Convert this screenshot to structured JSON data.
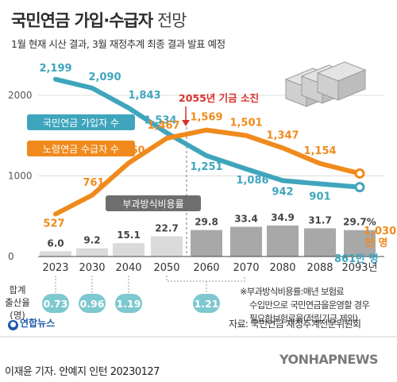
{
  "header": {
    "title_bold": "국민연금 가입·수급자",
    "title_light": " 전망",
    "subtitle": "1월 현재 시산 결과, 3월 재정추계 최종 결과 발표 예정"
  },
  "chart_data": {
    "type": "line",
    "categories": [
      "2023",
      "2030",
      "2040",
      "2050",
      "2060",
      "2070",
      "2080",
      "2088",
      "2093년"
    ],
    "ylim": [
      0,
      2300
    ],
    "y_ticks": [
      "2000",
      "1000",
      "0"
    ],
    "y_tick_values": [
      2000,
      1000,
      0
    ],
    "series": [
      {
        "name": "국민연금 가입자 수",
        "color": "#3fa5bd",
        "values": [
          2199,
          2090,
          1843,
          1534,
          1251,
          1086,
          942,
          901,
          861
        ],
        "labels": [
          "2,199",
          "2,090",
          "1,843",
          "1,534",
          "1,251",
          "1,086",
          "942",
          "901",
          "861만 명"
        ]
      },
      {
        "name": "노령연금 수급자 수",
        "color": "#f08a1c",
        "values": [
          527,
          761,
          1160,
          1467,
          1569,
          1501,
          1347,
          1154,
          1030
        ],
        "labels": [
          "527",
          "761",
          "1,160",
          "1,467",
          "1,569",
          "1,501",
          "1,347",
          "1,154",
          "1,030"
        ],
        "unit_label": "만 명"
      }
    ],
    "bars": {
      "name": "부과방식비용률",
      "values": [
        6.0,
        9.2,
        15.1,
        22.7,
        29.8,
        33.4,
        34.9,
        31.7,
        29.7
      ],
      "labels": [
        "6.0",
        "9.2",
        "15.1",
        "22.7",
        "29.8",
        "33.4",
        "34.9",
        "31.7",
        "29.7%"
      ]
    },
    "annotation": "2055년 기금 소진",
    "fertility": {
      "label": "합계\n출산율\n(명)",
      "values": [
        "0.73",
        "0.96",
        "1.19"
      ],
      "value_2060": "1.21"
    }
  },
  "note": {
    "lines": [
      "※부과방식비용률:매년 보험료",
      "수입만으로 국민연금을운영할 경우",
      "필요한보험료율(적립기금 제외)"
    ]
  },
  "source": "자료: 국민연금 재정추계전문위원회",
  "logo": "연합뉴스",
  "footer": "이재윤 기자. 안예지 인턴  20230127",
  "watermark": "YONHAPNEWS",
  "colors": {
    "teal": "#3fa5bd",
    "orange": "#f08a1c",
    "red": "#d8312b",
    "bar_light": "#dadada",
    "bar_dark": "#a8a8a8"
  }
}
